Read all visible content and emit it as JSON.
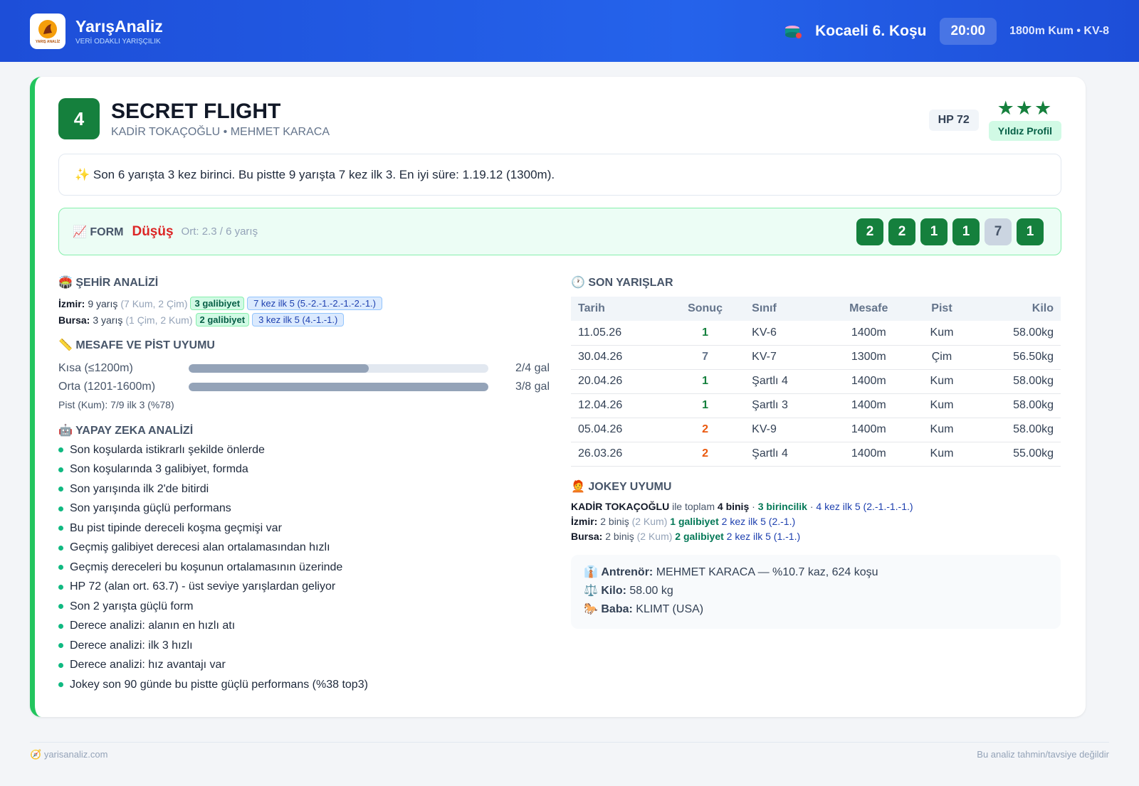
{
  "header": {
    "brand": "YarışAnaliz",
    "tagline": "VERİ ODAKLI YARIŞÇILIK",
    "logo_text": "YARIŞ ANALİZ",
    "race": "Kocaeli 6. Koşu",
    "time": "20:00",
    "details": "1800m Kum • KV-8"
  },
  "horse": {
    "number": "4",
    "name": "SECRET FLIGHT",
    "connections": "KADİR TOKAÇOĞLU • MEHMET KARACA",
    "hp": "HP 72",
    "stars": "★★★",
    "profile": "Yıldız Profil"
  },
  "summary": "✨ Son 6 yarışta 3 kez birinci. Bu pistte 9 yarışta 7 kez ilk 3. En iyi süre: 1.19.12 (1300m).",
  "form": {
    "label": "📈 FORM",
    "trend": "Düşüş",
    "average": "Ort: 2.3 / 6 yarış",
    "results": [
      "2",
      "2",
      "1",
      "1",
      "7",
      "1"
    ]
  },
  "city_analysis": {
    "title": "🏟️ ŞEHİR ANALİZİ",
    "rows": [
      {
        "city": "İzmir:",
        "races": "9 yarış",
        "surfaces": "(7 Kum, 2 Çim)",
        "wins": "3 galibiyet",
        "top5": "7 kez ilk 5 (5.-2.-1.-2.-1.-2.-1.)"
      },
      {
        "city": "Bursa:",
        "races": "3 yarış",
        "surfaces": "(1 Çim, 2 Kum)",
        "wins": "2 galibiyet",
        "top5": "3 kez ilk 5 (4.-1.-1.)"
      }
    ]
  },
  "distance": {
    "title": "📏 MESAFE VE PİST UYUMU",
    "rows": [
      {
        "label": "Kısa (≤1200m)",
        "result": "2/4 gal"
      },
      {
        "label": "Orta (1201-1600m)",
        "result": "3/8 gal"
      }
    ],
    "track": "Pist (Kum): 7/9 ilk 3 (%78)"
  },
  "ai_analysis": {
    "title": "🤖 YAPAY ZEKA ANALİZİ",
    "items": [
      "Son koşularda istikrarlı şekilde önlerde",
      "Son koşularında 3 galibiyet, formda",
      "Son yarışında ilk 2'de bitirdi",
      "Son yarışında güçlü performans",
      "Bu pist tipinde dereceli koşma geçmişi var",
      "Geçmiş galibiyet derecesi alan ortalamasından hızlı",
      "Geçmiş dereceleri bu koşunun ortalamasının üzerinde",
      "HP 72 (alan ort. 63.7) - üst seviye yarışlardan geliyor",
      "Son 2 yarışta güçlü form",
      "Derece analizi: alanın en hızlı atı",
      "Derece analizi: ilk 3 hızlı",
      "Derece analizi: hız avantajı var",
      "Jokey son 90 günde bu pistte güçlü performans (%38 top3)"
    ]
  },
  "recent_races": {
    "title": "🕐 SON YARIŞLAR",
    "columns": [
      "Tarih",
      "Sonuç",
      "Sınıf",
      "Mesafe",
      "Pist",
      "Kilo"
    ],
    "rows": [
      [
        "11.05.26",
        "1",
        "KV-6",
        "1400m",
        "Kum",
        "58.00kg"
      ],
      [
        "30.04.26",
        "7",
        "KV-7",
        "1300m",
        "Çim",
        "56.50kg"
      ],
      [
        "20.04.26",
        "1",
        "Şartlı 4",
        "1400m",
        "Kum",
        "58.00kg"
      ],
      [
        "12.04.26",
        "1",
        "Şartlı 3",
        "1400m",
        "Kum",
        "58.00kg"
      ],
      [
        "05.04.26",
        "2",
        "KV-9",
        "1400m",
        "Kum",
        "58.00kg"
      ],
      [
        "26.03.26",
        "2",
        "Şartlı 4",
        "1400m",
        "Kum",
        "55.00kg"
      ]
    ]
  },
  "jockey": {
    "title": "🧑‍🦰 JOKEY UYUMU",
    "summary": {
      "name": "KADİR TOKAÇOĞLU",
      "intro": "ile toplam",
      "rides": "4 biniş",
      "separator": "·",
      "wins": "3 birincilik",
      "top5": "4 kez ilk 5 (2.-1.-1.-1.)"
    },
    "cities": [
      {
        "city": "İzmir:",
        "rides": "2 biniş",
        "surfaces": "(2 Kum)",
        "wins": "1 galibiyet",
        "top5": "2 kez ilk 5 (2.-1.)"
      },
      {
        "city": "Bursa:",
        "rides": "2 biniş",
        "surfaces": "(2 Kum)",
        "wins": "2 galibiyet",
        "top5": "2 kez ilk 5 (1.-1.)"
      }
    ]
  },
  "info": [
    {
      "icon": "👔",
      "label": "Antrenör:",
      "value": "MEHMET KARACA — %10.7 kaz, 624 koşu"
    },
    {
      "icon": "⚖️",
      "label": "Kilo:",
      "value": "58.00 kg"
    },
    {
      "icon": "🐎",
      "label": "Baba:",
      "value": "KLIMT (USA)"
    }
  ],
  "footer": {
    "site": "yarisanaliz.com",
    "disclaimer": "Bu analiz tahmin/tavsiye değildir"
  }
}
